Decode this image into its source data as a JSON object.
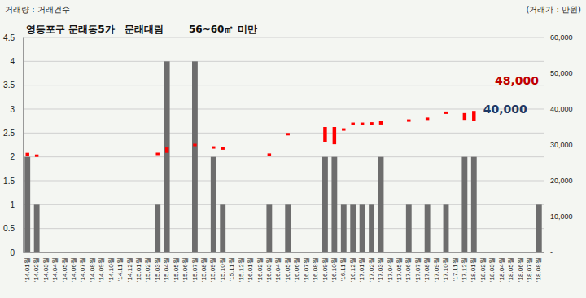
{
  "chart_data": {
    "type": "bar",
    "title": "영등포구 문래동5가   문래대림",
    "subtitle": "56~60㎡ 미만",
    "y_label": "거래량 : 거래건수",
    "y2_label": "(거래가 : 만원)",
    "categories": [
      "'14.01월",
      "'14.02월",
      "'14.03월",
      "'14.04월",
      "'14.05월",
      "'14.06월",
      "'14.07월",
      "'14.08월",
      "'14.09월",
      "'14.10월",
      "'14.11월",
      "'14.12월",
      "'15.01월",
      "'15.02월",
      "'15.03월",
      "'15.04월",
      "'15.05월",
      "'15.06월",
      "'15.07월",
      "'15.08월",
      "'15.09월",
      "'15.10월",
      "'15.11월",
      "'15.12월",
      "'16.01월",
      "'16.02월",
      "'16.03월",
      "'16.04월",
      "'16.05월",
      "'16.06월",
      "'16.07월",
      "'16.08월",
      "'16.09월",
      "'16.10월",
      "'16.11월",
      "'16.12월",
      "'17.01월",
      "'17.02월",
      "'17.03월",
      "'17.04월",
      "'17.05월",
      "'17.06월",
      "'17.07월",
      "'17.08월",
      "'17.09월",
      "'17.10월",
      "'17.11월",
      "'17.12월",
      "'18.01월",
      "'18.02월",
      "'18.03월",
      "'18.04월",
      "'18.05월",
      "'18.06월",
      "'18.07월",
      "'18.08월"
    ],
    "series": [
      {
        "name": "거래건수",
        "type": "bar",
        "color": "#6d6d6d",
        "values": [
          2,
          1,
          0,
          0,
          0,
          0,
          0,
          0,
          0,
          0,
          0,
          0,
          0,
          0,
          1,
          4,
          0,
          0,
          4,
          0,
          2,
          1,
          0,
          0,
          0,
          0,
          1,
          0,
          1,
          0,
          0,
          0,
          2,
          2,
          1,
          1,
          1,
          1,
          2,
          0,
          0,
          1,
          0,
          1,
          0,
          1,
          0,
          2,
          2,
          0,
          0,
          0,
          0,
          0,
          0,
          1
        ]
      },
      {
        "name": "거래가",
        "type": "range",
        "axis": "y2",
        "color": "#ff0000",
        "values": [
          [
            26800,
            27800
          ],
          27000,
          null,
          null,
          null,
          null,
          null,
          null,
          null,
          null,
          null,
          null,
          null,
          null,
          27500,
          [
            27800,
            29300
          ],
          null,
          null,
          30000,
          null,
          29300,
          29000,
          null,
          null,
          null,
          null,
          27300,
          null,
          33000,
          null,
          null,
          null,
          [
            30700,
            35000
          ],
          [
            30200,
            35000
          ],
          34300,
          35900,
          35900,
          36000,
          [
            35700,
            36800
          ],
          null,
          null,
          36800,
          null,
          37300,
          null,
          39000,
          null,
          [
            37000,
            38900
          ],
          [
            36600,
            39500
          ],
          null,
          null,
          null,
          null,
          null,
          null,
          null
        ]
      }
    ],
    "ylim": [
      0,
      4.5
    ],
    "yticks": [
      0,
      0.5,
      1,
      1.5,
      2,
      2.5,
      3,
      3.5,
      4,
      4.5
    ],
    "y2lim": [
      0,
      60000
    ],
    "y2ticks": [
      {
        "value": 0,
        "label": "-"
      },
      {
        "value": 10000,
        "label": "10,000"
      },
      {
        "value": 20000,
        "label": "20,000"
      },
      {
        "value": 30000,
        "label": "30,000"
      },
      {
        "value": 40000,
        "label": "40,000"
      },
      {
        "value": 50000,
        "label": "50,000"
      },
      {
        "value": 60000,
        "label": "60,000"
      }
    ],
    "annotations": [
      {
        "text": "48,000",
        "value": 48000,
        "color": "#c00000"
      },
      {
        "text": "40,000",
        "value": 40000,
        "color": "#1f3864"
      }
    ],
    "grid": true
  }
}
